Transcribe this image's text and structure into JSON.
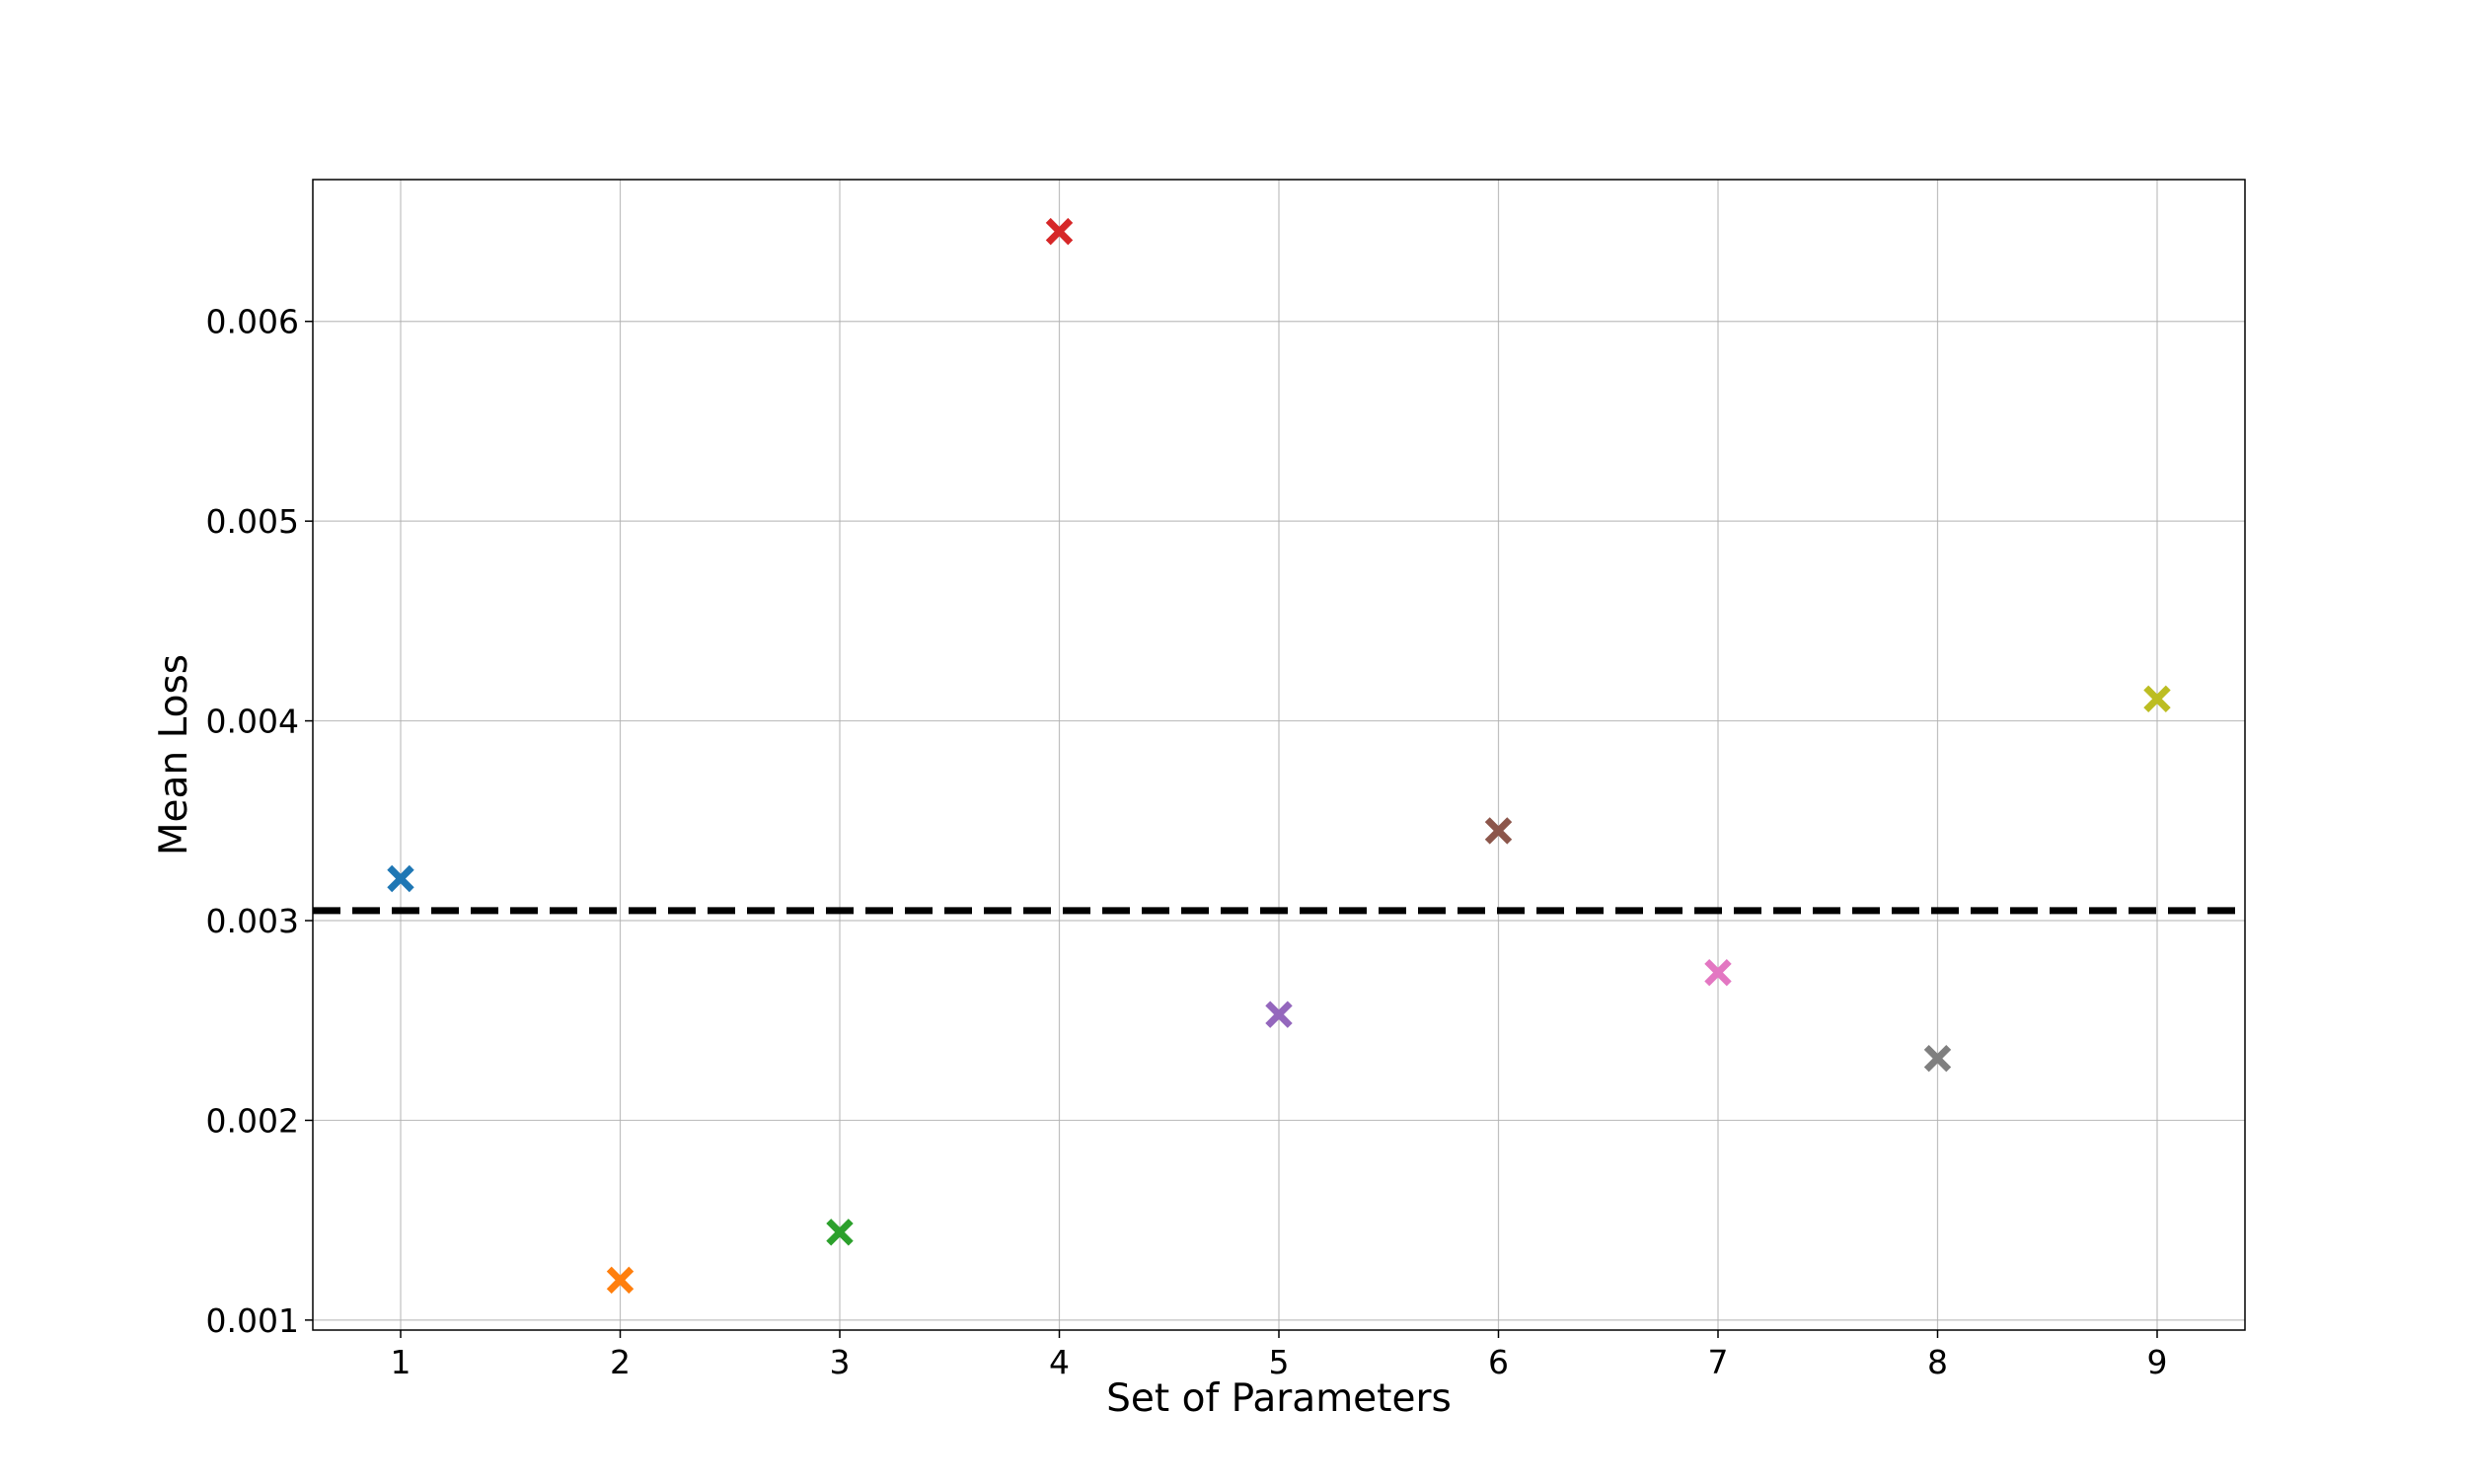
{
  "chart_data": {
    "type": "scatter",
    "title": "",
    "xlabel": "Set of Parameters",
    "ylabel": "Mean Loss",
    "x": [
      1,
      2,
      3,
      4,
      5,
      6,
      7,
      8,
      9
    ],
    "values": [
      0.00321,
      0.0012,
      0.00144,
      0.00645,
      0.00253,
      0.00345,
      0.00274,
      0.00231,
      0.00411
    ],
    "colors": [
      "#1f77b4",
      "#ff7f0e",
      "#2ca02c",
      "#d62728",
      "#9467bd",
      "#8c564b",
      "#e377c2",
      "#7f7f7f",
      "#bcbd22"
    ],
    "marker": "X",
    "xlim": [
      0.6,
      9.4
    ],
    "ylim": [
      0.00095,
      0.00671
    ],
    "xticks": [
      1,
      2,
      3,
      4,
      5,
      6,
      7,
      8,
      9
    ],
    "xtick_labels": [
      "1",
      "2",
      "3",
      "4",
      "5",
      "6",
      "7",
      "8",
      "9"
    ],
    "yticks": [
      0.001,
      0.002,
      0.003,
      0.004,
      0.005,
      0.006
    ],
    "ytick_labels": [
      "0.001",
      "0.002",
      "0.003",
      "0.004",
      "0.005",
      "0.006"
    ],
    "reference_line": {
      "y": 0.00305,
      "style": "dashed",
      "color": "#000000"
    },
    "grid": true,
    "legend": "none"
  }
}
